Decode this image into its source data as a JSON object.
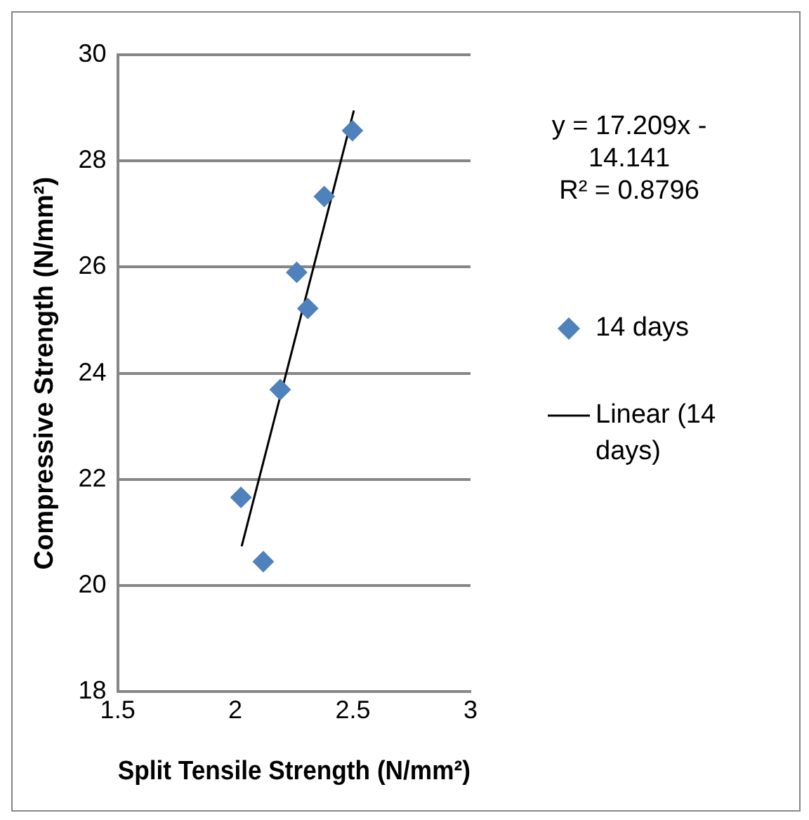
{
  "chart_data": {
    "type": "scatter",
    "xlabel": "Split Tensile Strength (N/mm²)",
    "ylabel": "Compressive Strength (N/mm²)",
    "x": [
      2.498,
      2.378,
      2.261,
      2.308,
      2.191,
      2.024,
      2.119
    ],
    "series": [
      {
        "name": "14 days",
        "color": "#4f81bd",
        "values": [
          28.57,
          27.33,
          25.9,
          25.22,
          23.69,
          21.66,
          20.45
        ],
        "marker": "diamond"
      },
      {
        "name": "Linear (14 days)",
        "type": "line",
        "color": "#000000",
        "x": [
          2.027,
          2.504
        ],
        "values": [
          20.74,
          28.95
        ],
        "marker": "none"
      }
    ],
    "xlim": [
      1.5,
      3
    ],
    "xticks": [
      1.5,
      2,
      2.5,
      3
    ],
    "ylim": [
      18,
      30
    ],
    "yticks": [
      18,
      20,
      22,
      24,
      26,
      28,
      30
    ],
    "grid": "y",
    "legend": "right",
    "annotations": [
      "y = 17.209x - 14.141",
      "R² = 0.8796"
    ]
  }
}
